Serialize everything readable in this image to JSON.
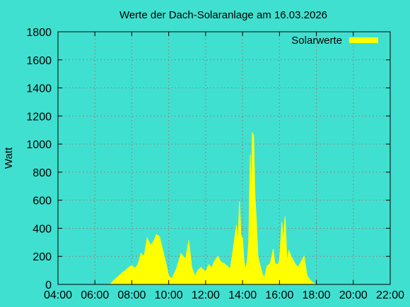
{
  "chart_data": {
    "type": "area",
    "title": "Werte der Dach-Solaranlage am 16.03.2026",
    "xlabel": "",
    "ylabel": "Watt",
    "xlim": [
      "04:00",
      "22:00"
    ],
    "ylim": [
      0,
      1800
    ],
    "x_ticks": [
      "04:00",
      "06:00",
      "08:00",
      "10:00",
      "12:00",
      "14:00",
      "16:00",
      "18:00",
      "20:00",
      "22:00"
    ],
    "y_ticks": [
      0,
      200,
      400,
      600,
      800,
      1000,
      1200,
      1400,
      1600,
      1800
    ],
    "grid": true,
    "legend_position": "top-right",
    "colors": {
      "background": "#40e0d0",
      "series": "#ffff00"
    },
    "series": [
      {
        "name": "Solarwerte",
        "points": [
          [
            "06:50",
            0
          ],
          [
            "07:00",
            25
          ],
          [
            "07:15",
            55
          ],
          [
            "07:30",
            85
          ],
          [
            "07:40",
            100
          ],
          [
            "07:50",
            120
          ],
          [
            "08:00",
            135
          ],
          [
            "08:10",
            115
          ],
          [
            "08:20",
            140
          ],
          [
            "08:30",
            220
          ],
          [
            "08:40",
            200
          ],
          [
            "08:50",
            330
          ],
          [
            "09:00",
            280
          ],
          [
            "09:10",
            300
          ],
          [
            "09:20",
            355
          ],
          [
            "09:30",
            340
          ],
          [
            "09:40",
            250
          ],
          [
            "09:50",
            160
          ],
          [
            "10:00",
            60
          ],
          [
            "10:10",
            40
          ],
          [
            "10:25",
            110
          ],
          [
            "10:40",
            220
          ],
          [
            "10:55",
            180
          ],
          [
            "11:05",
            310
          ],
          [
            "11:15",
            120
          ],
          [
            "11:25",
            60
          ],
          [
            "11:35",
            100
          ],
          [
            "11:45",
            120
          ],
          [
            "12:00",
            90
          ],
          [
            "12:10",
            140
          ],
          [
            "12:20",
            120
          ],
          [
            "12:30",
            170
          ],
          [
            "12:40",
            200
          ],
          [
            "12:50",
            160
          ],
          [
            "13:00",
            150
          ],
          [
            "13:10",
            130
          ],
          [
            "13:20",
            110
          ],
          [
            "13:30",
            260
          ],
          [
            "13:40",
            420
          ],
          [
            "13:45",
            300
          ],
          [
            "13:50",
            590
          ],
          [
            "13:55",
            350
          ],
          [
            "14:00",
            330
          ],
          [
            "14:05",
            160
          ],
          [
            "14:10",
            110
          ],
          [
            "14:15",
            160
          ],
          [
            "14:20",
            300
          ],
          [
            "14:25",
            920
          ],
          [
            "14:28",
            580
          ],
          [
            "14:32",
            1080
          ],
          [
            "14:36",
            1060
          ],
          [
            "14:40",
            650
          ],
          [
            "14:45",
            450
          ],
          [
            "14:50",
            200
          ],
          [
            "15:00",
            110
          ],
          [
            "15:10",
            40
          ],
          [
            "15:20",
            130
          ],
          [
            "15:30",
            150
          ],
          [
            "15:40",
            250
          ],
          [
            "15:45",
            150
          ],
          [
            "15:55",
            140
          ],
          [
            "16:00",
            170
          ],
          [
            "16:08",
            440
          ],
          [
            "16:12",
            300
          ],
          [
            "16:18",
            480
          ],
          [
            "16:25",
            150
          ],
          [
            "16:30",
            240
          ],
          [
            "16:40",
            190
          ],
          [
            "16:50",
            150
          ],
          [
            "17:00",
            120
          ],
          [
            "17:10",
            160
          ],
          [
            "17:20",
            200
          ],
          [
            "17:30",
            60
          ],
          [
            "17:40",
            30
          ],
          [
            "17:50",
            10
          ],
          [
            "18:00",
            0
          ]
        ]
      }
    ]
  }
}
